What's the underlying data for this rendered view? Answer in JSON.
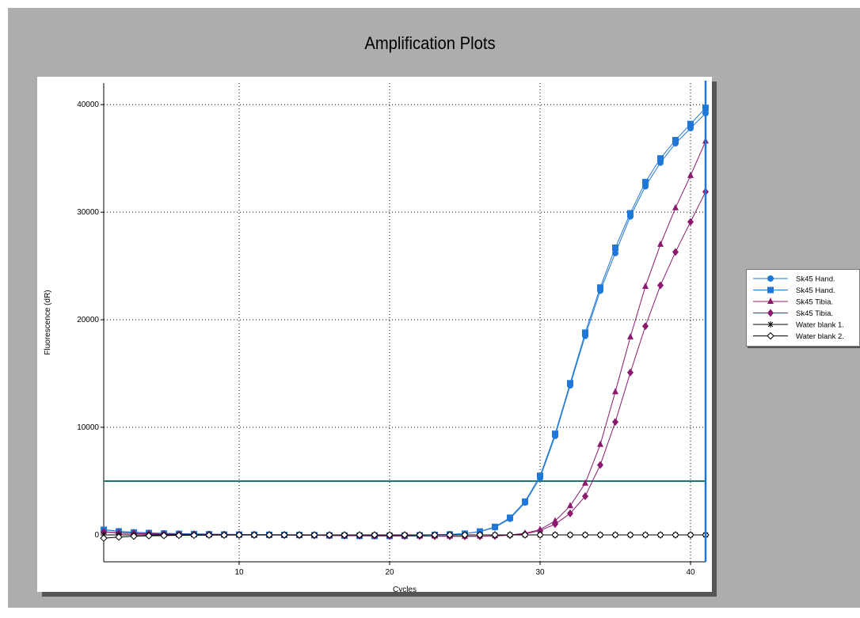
{
  "chart_data": {
    "type": "line",
    "title": "Amplification Plots",
    "xlabel": "Cycles",
    "ylabel": "Fluorescence (dR)",
    "xlim": [
      1,
      41
    ],
    "ylim": [
      -2500,
      42000
    ],
    "xticks": [
      10,
      20,
      30,
      40
    ],
    "yticks": [
      0,
      10000,
      20000,
      30000,
      40000
    ],
    "grid": true,
    "legend_position": "right",
    "threshold": 5000,
    "threshold_color": "#1a7a6e",
    "cursor_cycle": 41,
    "cursor_color": "#1f78d8",
    "x": [
      1,
      2,
      3,
      4,
      5,
      6,
      7,
      8,
      9,
      10,
      11,
      12,
      13,
      14,
      15,
      16,
      17,
      18,
      19,
      20,
      21,
      22,
      23,
      24,
      25,
      26,
      27,
      28,
      29,
      30,
      31,
      32,
      33,
      34,
      35,
      36,
      37,
      38,
      39,
      40,
      41
    ],
    "series": [
      {
        "name": "Sk45 Hand.",
        "color": "#1f78d8",
        "marker": "circle",
        "values": [
          500,
          350,
          250,
          200,
          150,
          120,
          100,
          80,
          60,
          50,
          40,
          30,
          20,
          10,
          0,
          -20,
          -40,
          -60,
          -80,
          -80,
          -60,
          -20,
          20,
          60,
          120,
          300,
          700,
          1500,
          3000,
          5300,
          9200,
          13900,
          18500,
          22700,
          26200,
          29600,
          32400,
          34600,
          36400,
          37800,
          39200
        ]
      },
      {
        "name": "Sk45 Hand.",
        "color": "#1f78d8",
        "marker": "square",
        "values": [
          480,
          330,
          230,
          180,
          130,
          100,
          80,
          60,
          40,
          30,
          20,
          10,
          0,
          -10,
          -30,
          -50,
          -70,
          -90,
          -100,
          -100,
          -80,
          -40,
          0,
          50,
          120,
          320,
          750,
          1600,
          3100,
          5500,
          9400,
          14100,
          18800,
          23000,
          26700,
          29900,
          32800,
          35000,
          36700,
          38200,
          39700
        ]
      },
      {
        "name": "Sk45 Tibia.",
        "color": "#8b1a6e",
        "marker": "triangle",
        "values": [
          300,
          200,
          150,
          100,
          80,
          60,
          50,
          40,
          30,
          20,
          10,
          0,
          -10,
          -20,
          -30,
          -40,
          -50,
          -60,
          -70,
          -80,
          -90,
          -100,
          -110,
          -120,
          -130,
          -120,
          -80,
          0,
          150,
          500,
          1300,
          2700,
          4800,
          8400,
          13300,
          18400,
          23100,
          27000,
          30400,
          33400,
          36600
        ]
      },
      {
        "name": "Sk45 Tibia.",
        "color": "#8b1a6e",
        "marker": "diamond",
        "values": [
          280,
          180,
          130,
          90,
          70,
          50,
          40,
          30,
          20,
          10,
          0,
          -10,
          -20,
          -30,
          -40,
          -50,
          -60,
          -70,
          -80,
          -90,
          -100,
          -110,
          -120,
          -130,
          -140,
          -130,
          -100,
          -30,
          100,
          400,
          1000,
          2000,
          3600,
          6500,
          10500,
          15100,
          19400,
          23200,
          26300,
          29100,
          31900
        ]
      },
      {
        "name": "Water blank 1.",
        "color": "#000000",
        "marker": "star",
        "values": [
          0,
          0,
          0,
          0,
          0,
          0,
          0,
          0,
          0,
          0,
          0,
          0,
          0,
          0,
          0,
          0,
          0,
          0,
          0,
          0,
          0,
          0,
          0,
          0,
          0,
          0,
          0,
          0,
          0,
          0,
          0,
          0,
          0,
          0,
          0,
          0,
          0,
          0,
          0,
          0,
          0
        ]
      },
      {
        "name": "Water blank 2.",
        "color": "#000000",
        "marker": "open-diamond",
        "values": [
          -300,
          -200,
          -120,
          -80,
          -60,
          -40,
          -30,
          -20,
          -20,
          -10,
          -10,
          0,
          0,
          0,
          0,
          0,
          0,
          0,
          0,
          0,
          0,
          0,
          0,
          0,
          0,
          0,
          0,
          0,
          0,
          0,
          0,
          0,
          0,
          0,
          0,
          0,
          0,
          0,
          0,
          0,
          0
        ]
      }
    ]
  }
}
